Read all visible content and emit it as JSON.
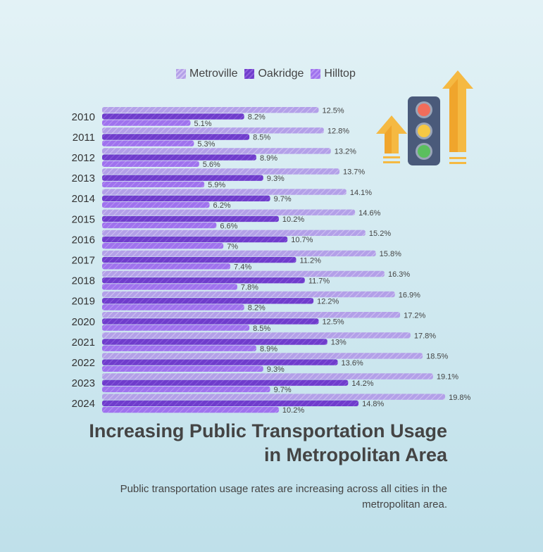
{
  "colors": {
    "metroville": "#b3a0e8",
    "oakridge": "#6f3ccc",
    "hilltop": "#9f72ee",
    "arrow": "#f5b942",
    "traffic_body": "#4a5a7a"
  },
  "legend": [
    "Metroville",
    "Oakridge",
    "Hilltop"
  ],
  "title": "Increasing Public Transportation Usage in Metropolitan Area",
  "subtitle": "Public transportation usage rates are increasing across all cities in the metropolitan area.",
  "icon": "traffic-light-with-up-arrows-icon",
  "chart_data": {
    "type": "bar",
    "orientation": "horizontal",
    "categories": [
      "2010",
      "2011",
      "2012",
      "2013",
      "2014",
      "2015",
      "2016",
      "2017",
      "2018",
      "2019",
      "2020",
      "2021",
      "2022",
      "2023",
      "2024"
    ],
    "series": [
      {
        "name": "Metroville",
        "values": [
          12.5,
          12.8,
          13.2,
          13.7,
          14.1,
          14.6,
          15.2,
          15.8,
          16.3,
          16.9,
          17.2,
          17.8,
          18.5,
          19.1,
          19.8
        ]
      },
      {
        "name": "Oakridge",
        "values": [
          8.2,
          8.5,
          8.9,
          9.3,
          9.7,
          10.2,
          10.7,
          11.2,
          11.7,
          12.2,
          12.5,
          13,
          13.6,
          14.2,
          14.8
        ]
      },
      {
        "name": "Hilltop",
        "values": [
          5.1,
          5.3,
          5.6,
          5.9,
          6.2,
          6.6,
          7,
          7.4,
          7.8,
          8.2,
          8.5,
          8.9,
          9.3,
          9.7,
          10.2
        ]
      }
    ],
    "value_suffix": "%",
    "grid": false,
    "legend_position": "top"
  }
}
